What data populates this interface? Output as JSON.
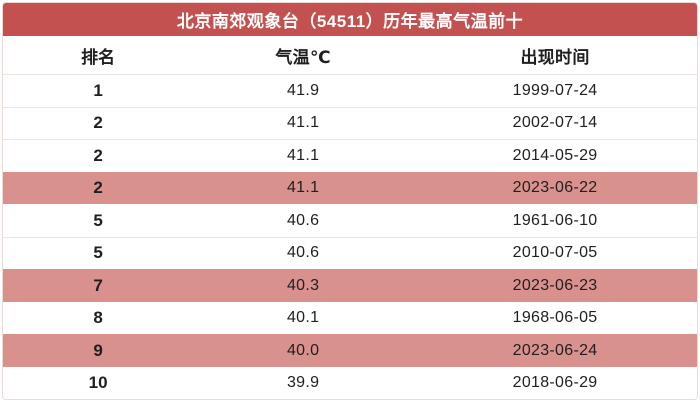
{
  "chart_data": {
    "type": "table",
    "title": "北京南郊观象台（54511）历年最高气温前十",
    "columns": [
      "排名",
      "气温℃",
      "出现时间"
    ],
    "rows": [
      {
        "rank": "1",
        "temp": "41.9",
        "date": "1999-07-24",
        "highlight": false
      },
      {
        "rank": "2",
        "temp": "41.1",
        "date": "2002-07-14",
        "highlight": false
      },
      {
        "rank": "2",
        "temp": "41.1",
        "date": "2014-05-29",
        "highlight": false
      },
      {
        "rank": "2",
        "temp": "41.1",
        "date": "2023-06-22",
        "highlight": true
      },
      {
        "rank": "5",
        "temp": "40.6",
        "date": "1961-06-10",
        "highlight": false
      },
      {
        "rank": "5",
        "temp": "40.6",
        "date": "2010-07-05",
        "highlight": false
      },
      {
        "rank": "7",
        "temp": "40.3",
        "date": "2023-06-23",
        "highlight": true
      },
      {
        "rank": "8",
        "temp": "40.1",
        "date": "1968-06-05",
        "highlight": false
      },
      {
        "rank": "9",
        "temp": "40.0",
        "date": "2023-06-24",
        "highlight": true
      },
      {
        "rank": "10",
        "temp": "39.9",
        "date": "2018-06-29",
        "highlight": false
      }
    ],
    "layout": {
      "legend": "none",
      "grid": "horizontal-dividers"
    }
  },
  "colors": {
    "header_bg": "#C25150",
    "header_text": "#FFFFFF",
    "highlight_bg": "#D9918E",
    "row_divider": "#F2E2E1",
    "outer_border": "#EFD9D8",
    "text": "#1F1F1F"
  }
}
